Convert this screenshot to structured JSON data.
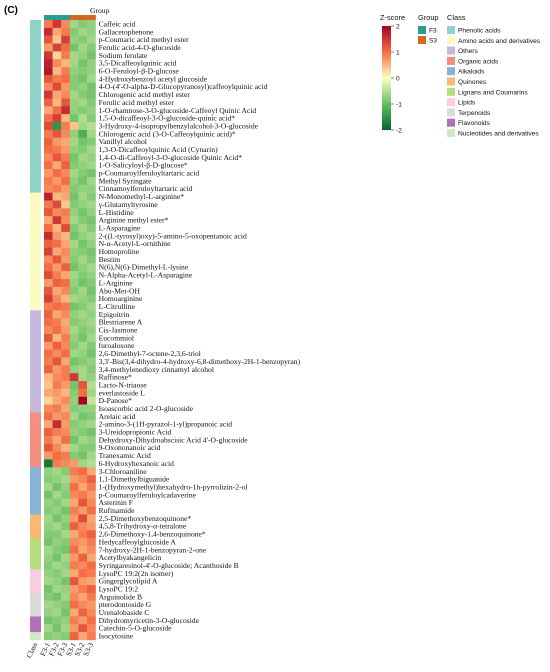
{
  "chart_data": {
    "type": "heatmap",
    "panel_label": "(C)",
    "group_header": "Group",
    "columns": [
      "Class",
      "F3-1",
      "F3-2",
      "F3-3",
      "S3-1",
      "S3-2",
      "S3-3"
    ],
    "column_groups": [
      "F3",
      "F3",
      "F3",
      "S3",
      "S3",
      "S3"
    ],
    "zscore_range": [
      -2,
      2
    ],
    "zscore_ticks": [
      2,
      1,
      0,
      -1,
      -2
    ],
    "legend": {
      "zscore_title": "Z-score",
      "group_title": "Group",
      "class_title": "Class",
      "groups": [
        {
          "name": "F3",
          "color": "#2a9d8f"
        },
        {
          "name": "S3",
          "color": "#d2691e"
        }
      ],
      "classes": [
        {
          "name": "Phenolic acids",
          "color": "#8fd3cb"
        },
        {
          "name": "Amino acids and derivatives",
          "color": "#fdfbc4"
        },
        {
          "name": "Others",
          "color": "#c5b8dc"
        },
        {
          "name": "Organic acids",
          "color": "#f58e7f"
        },
        {
          "name": "Alkaloids",
          "color": "#86b3d6"
        },
        {
          "name": "Quinones",
          "color": "#f9b774"
        },
        {
          "name": "Lignans and Coumarins",
          "color": "#b8dd7e"
        },
        {
          "name": "Lipids",
          "color": "#f7cde0"
        },
        {
          "name": "Terpenoids",
          "color": "#d9d9d9"
        },
        {
          "name": "Flavonoids",
          "color": "#b370b8"
        },
        {
          "name": "Nucleotides and derivatives",
          "color": "#cfeac3"
        }
      ]
    },
    "rows": [
      {
        "name": "Caffeic acid",
        "class": "Phenolic acids",
        "values": [
          0.9,
          1.5,
          0.8,
          -0.6,
          -0.8,
          -0.7
        ]
      },
      {
        "name": "Gallacetophenone",
        "class": "Phenolic acids",
        "values": [
          1.6,
          0.6,
          0.9,
          -0.8,
          -0.6,
          -0.7
        ]
      },
      {
        "name": "p-Coumaric acid methyl ester",
        "class": "Phenolic acids",
        "values": [
          1.2,
          0.4,
          1.4,
          -0.7,
          -0.8,
          -0.6
        ]
      },
      {
        "name": "Ferulic acid-4-O-glucoside",
        "class": "Phenolic acids",
        "values": [
          0.7,
          1.4,
          1.0,
          -0.9,
          -0.6,
          -0.8
        ]
      },
      {
        "name": "Sodium ferulate",
        "class": "Phenolic acids",
        "values": [
          1.5,
          0.3,
          0.9,
          -0.6,
          -0.7,
          -0.9
        ]
      },
      {
        "name": "3,5-Dicaffeoylquinic acid",
        "class": "Phenolic acids",
        "values": [
          1.7,
          0.8,
          0.5,
          -0.6,
          -0.9,
          -0.7
        ]
      },
      {
        "name": "6-O-Feruloyl-β-D-glucose",
        "class": "Phenolic acids",
        "values": [
          1.8,
          0.5,
          0.9,
          -0.7,
          -0.8,
          -0.7
        ]
      },
      {
        "name": "4-Hydroxybenzoyl acetyl glucoside",
        "class": "Phenolic acids",
        "values": [
          1.2,
          0.9,
          1.0,
          -0.8,
          -0.9,
          -0.6
        ]
      },
      {
        "name": "4-O-(4'-O-alpha-D-Glucopyranosyl)caffeoylquinic acid",
        "class": "Phenolic acids",
        "values": [
          0.8,
          1.3,
          0.7,
          -0.8,
          -0.7,
          -0.9
        ]
      },
      {
        "name": "Chlorogenic acid methyl ester",
        "class": "Phenolic acids",
        "values": [
          1.5,
          0.6,
          0.8,
          -0.6,
          -0.8,
          -0.9
        ]
      },
      {
        "name": "Ferulic acid methyl ester",
        "class": "Phenolic acids",
        "values": [
          1.1,
          0.5,
          1.2,
          -0.7,
          -0.6,
          -0.8
        ]
      },
      {
        "name": "1-O-rhamnose-3-O-glucoside-Caffeoyl Quinic Acid",
        "class": "Phenolic acids",
        "values": [
          0.6,
          1.0,
          1.6,
          -0.7,
          -0.8,
          -0.7
        ]
      },
      {
        "name": "1,5-O-dicaffeoyl-3-O-glucoside-quinic acid*",
        "class": "Phenolic acids",
        "values": [
          1.0,
          1.4,
          0.5,
          -0.9,
          -0.5,
          -0.8
        ]
      },
      {
        "name": "3-Hydroxy-4-isopropylbenzylalcohol-3-O-glucoside",
        "class": "Phenolic acids",
        "values": [
          1.3,
          -1.5,
          0.9,
          0.4,
          -0.6,
          -0.5
        ]
      },
      {
        "name": "Chlorogenic acid (3-O-Caffeoylquinic acid)*",
        "class": "Phenolic acids",
        "values": [
          0.9,
          1.2,
          0.8,
          -0.7,
          -1.2,
          -0.6
        ]
      },
      {
        "name": "Vanillyl alcohol",
        "class": "Phenolic acids",
        "values": [
          1.1,
          0.7,
          0.6,
          -0.6,
          -0.9,
          -0.8
        ]
      },
      {
        "name": "1,3-O-Dicaffeoylquinic Acid (Cynarin)",
        "class": "Phenolic acids",
        "values": [
          1.0,
          0.9,
          0.7,
          -0.7,
          -0.8,
          -0.6
        ]
      },
      {
        "name": "1,4-O-di-Caffeoyl-3-O-glucoside Quinic Acid*",
        "class": "Phenolic acids",
        "values": [
          0.8,
          1.2,
          0.9,
          -0.9,
          -0.6,
          -0.7
        ]
      },
      {
        "name": "1-O-Salicyloyl-β-D-glucose*",
        "class": "Phenolic acids",
        "values": [
          1.0,
          0.6,
          1.1,
          -0.8,
          -0.7,
          -0.6
        ]
      },
      {
        "name": "p-Coumaroylferuloyltartaric acid",
        "class": "Phenolic acids",
        "values": [
          0.7,
          1.0,
          0.8,
          -0.6,
          -0.8,
          -0.9
        ]
      },
      {
        "name": "Methyl Syringate",
        "class": "Phenolic acids",
        "values": [
          0.9,
          0.7,
          1.0,
          -0.7,
          -0.9,
          -0.6
        ]
      },
      {
        "name": "Cinnamoylferuloyltartaric acid",
        "class": "Phenolic acids",
        "values": [
          0.8,
          0.9,
          0.7,
          -0.8,
          -0.7,
          -0.7
        ]
      },
      {
        "name": "N-Monomethyl-L-arginine*",
        "class": "Amino acids and derivatives",
        "values": [
          1.7,
          0.5,
          0.6,
          -0.9,
          -0.6,
          -0.8
        ]
      },
      {
        "name": "γ-Glutamyltyrosine",
        "class": "Amino acids and derivatives",
        "values": [
          0.9,
          1.3,
          0.4,
          -0.8,
          -0.7,
          -0.6
        ]
      },
      {
        "name": "L-Histidine",
        "class": "Amino acids and derivatives",
        "values": [
          1.2,
          0.8,
          0.9,
          -0.7,
          -0.9,
          -0.7
        ]
      },
      {
        "name": "Arginine methyl ester*",
        "class": "Amino acids and derivatives",
        "values": [
          0.6,
          1.5,
          0.8,
          -0.6,
          -0.8,
          -0.9
        ]
      },
      {
        "name": "L-Asparagine",
        "class": "Amino acids and derivatives",
        "values": [
          1.0,
          0.5,
          1.3,
          -0.8,
          -0.6,
          -0.8
        ]
      },
      {
        "name": "2-((L-tyrosyl)oxy)-5-amino-5-oxopentanoic acid",
        "class": "Amino acids and derivatives",
        "values": [
          1.6,
          0.7,
          0.5,
          -0.9,
          -0.7,
          -0.6
        ]
      },
      {
        "name": "N-α-Acetyl-L-ornithine",
        "class": "Amino acids and derivatives",
        "values": [
          1.1,
          1.0,
          0.6,
          -0.6,
          -0.9,
          -0.7
        ]
      },
      {
        "name": "Homoproline",
        "class": "Amino acids and derivatives",
        "values": [
          1.4,
          0.6,
          0.8,
          -0.7,
          -0.8,
          -0.9
        ]
      },
      {
        "name": "Bestim",
        "class": "Amino acids and derivatives",
        "values": [
          0.8,
          1.2,
          0.7,
          -0.8,
          -0.6,
          -0.8
        ]
      },
      {
        "name": "N(6),N(6)-Dimethyl-L-lysine",
        "class": "Amino acids and derivatives",
        "values": [
          1.0,
          0.7,
          1.1,
          -0.9,
          -0.7,
          -0.6
        ]
      },
      {
        "name": "N-Alpha-Acetyl-L-Asparagine",
        "class": "Amino acids and derivatives",
        "values": [
          1.3,
          0.9,
          0.6,
          -0.6,
          -0.8,
          -0.7
        ]
      },
      {
        "name": "L-Arginine",
        "class": "Amino acids and derivatives",
        "values": [
          0.7,
          1.1,
          1.0,
          -0.7,
          -0.9,
          -0.8
        ]
      },
      {
        "name": "Abu-Met-OH",
        "class": "Amino acids and derivatives",
        "values": [
          1.2,
          0.6,
          0.8,
          -0.8,
          -0.6,
          -0.9
        ]
      },
      {
        "name": "Homoarginine",
        "class": "Amino acids and derivatives",
        "values": [
          1.4,
          0.8,
          0.5,
          -0.6,
          -0.7,
          -0.8
        ]
      },
      {
        "name": "L-Citrulline",
        "class": "Amino acids and derivatives",
        "values": [
          0.9,
          1.0,
          0.9,
          -0.9,
          -0.8,
          -0.6
        ]
      },
      {
        "name": "Epigoitrin",
        "class": "Others",
        "values": [
          1.1,
          0.6,
          0.8,
          -0.7,
          -0.6,
          -0.7
        ]
      },
      {
        "name": "Blestriarene A",
        "class": "Others",
        "values": [
          1.0,
          0.9,
          0.6,
          -0.8,
          -0.7,
          -0.6
        ]
      },
      {
        "name": "Cis-Jasmone",
        "class": "Others",
        "values": [
          0.8,
          1.0,
          0.7,
          -0.6,
          -0.8,
          -0.7
        ]
      },
      {
        "name": "Eucommiol",
        "class": "Others",
        "values": [
          1.2,
          0.5,
          0.9,
          -0.7,
          -0.9,
          -0.6
        ]
      },
      {
        "name": "furoalosone",
        "class": "Others",
        "values": [
          0.7,
          1.1,
          0.8,
          -0.8,
          -0.6,
          -0.8
        ]
      },
      {
        "name": "2,6-Dimethyl-7-octene-2,3,6-triol",
        "class": "Others",
        "values": [
          1.0,
          0.8,
          1.0,
          -0.6,
          -0.7,
          -0.9
        ]
      },
      {
        "name": "3,3'-Bis(3,4-dihydro-4-hydroxy-6,8-dimethoxy-2H-1-benzopyran)",
        "class": "Others",
        "values": [
          0.9,
          1.2,
          0.6,
          -0.9,
          -0.8,
          -0.7
        ]
      },
      {
        "name": "3,4-methylenedioxy cinnamyl alcohol",
        "class": "Others",
        "values": [
          1.1,
          0.7,
          0.9,
          -0.7,
          -0.6,
          -0.8
        ]
      },
      {
        "name": "Raffinose*",
        "class": "Others",
        "values": [
          0.5,
          0.8,
          0.9,
          1.5,
          -0.6,
          -0.7
        ]
      },
      {
        "name": "Lacto-N-triaose",
        "class": "Others",
        "values": [
          0.4,
          0.9,
          0.7,
          -0.9,
          1.2,
          -0.5
        ]
      },
      {
        "name": "everlastoside L",
        "class": "Others",
        "values": [
          0.6,
          0.7,
          0.5,
          -0.8,
          1.0,
          -0.6
        ]
      },
      {
        "name": "D-Panose*",
        "class": "Others",
        "values": [
          0.3,
          0.6,
          0.8,
          -0.7,
          2.0,
          -0.4
        ]
      },
      {
        "name": "Isoascorbic acid 2-O-glucoside",
        "class": "Others",
        "values": [
          0.8,
          0.9,
          0.6,
          -0.8,
          -0.7,
          -0.7
        ]
      },
      {
        "name": "Arelaic acid",
        "class": "Organic acids",
        "values": [
          1.0,
          0.7,
          0.8,
          -0.6,
          -0.9,
          -0.8
        ]
      },
      {
        "name": "2-amino-3-(1H-pyrazol-1-yl)propanoic acid",
        "class": "Organic acids",
        "values": [
          0.6,
          1.6,
          0.7,
          -0.8,
          -0.7,
          -0.6
        ]
      },
      {
        "name": "3-Ureidopropionic Acid",
        "class": "Organic acids",
        "values": [
          1.1,
          0.9,
          0.8,
          -0.7,
          -0.8,
          -0.9
        ]
      },
      {
        "name": "Dehydroxy-Dihydroabscisic Acid 4'-O-glucoside",
        "class": "Organic acids",
        "values": [
          0.9,
          0.6,
          1.0,
          -0.9,
          -0.6,
          -0.7
        ]
      },
      {
        "name": "9-Oxononanoic acid",
        "class": "Organic acids",
        "values": [
          1.2,
          0.8,
          0.5,
          -0.6,
          -0.8,
          -0.8
        ]
      },
      {
        "name": "Tranexamic Acid",
        "class": "Organic acids",
        "values": [
          0.7,
          1.0,
          0.9,
          -0.8,
          -0.9,
          -0.6
        ]
      },
      {
        "name": "6-Hydroxyhexanoic acid",
        "class": "Organic acids",
        "values": [
          -1.8,
          0.9,
          0.8,
          0.7,
          -0.6,
          -0.5
        ]
      },
      {
        "name": "3-Chloroaniline",
        "class": "Alkaloids",
        "values": [
          -0.7,
          -0.6,
          -0.8,
          0.9,
          1.0,
          0.6
        ]
      },
      {
        "name": "1,1-Dimethylbiguanide",
        "class": "Alkaloids",
        "values": [
          -0.8,
          -0.7,
          -0.6,
          0.7,
          0.8,
          1.1
        ]
      },
      {
        "name": "1-(Hydroxymethyl)hexahydro-1h-pyrrolizin-2-ol",
        "class": "Alkaloids",
        "values": [
          -0.6,
          -0.9,
          -0.7,
          1.0,
          0.6,
          0.9
        ]
      },
      {
        "name": "p-Coumaroylferuloylcadaverine",
        "class": "Alkaloids",
        "values": [
          -0.9,
          -0.6,
          -0.8,
          0.8,
          0.9,
          0.7
        ]
      },
      {
        "name": "Asterinin F",
        "class": "Alkaloids",
        "values": [
          -0.7,
          -0.8,
          -0.6,
          0.6,
          1.2,
          0.8
        ]
      },
      {
        "name": "Rufinamide",
        "class": "Alkaloids",
        "values": [
          -0.8,
          -0.7,
          -0.9,
          0.9,
          0.7,
          1.0
        ]
      },
      {
        "name": "2,5-Dimethoxybenzoquinone*",
        "class": "Quinones",
        "values": [
          -0.6,
          -0.9,
          -0.7,
          0.7,
          1.3,
          0.6
        ]
      },
      {
        "name": "4,5,8-Trihydroxy-α-tetralone",
        "class": "Quinones",
        "values": [
          -0.7,
          -0.6,
          -0.8,
          1.1,
          0.8,
          0.7
        ]
      },
      {
        "name": "2,6-Dimethoxy-1,4-benzoquinone*",
        "class": "Quinones",
        "values": [
          -0.8,
          -0.8,
          -0.6,
          0.6,
          0.9,
          1.1
        ]
      },
      {
        "name": "Hedycaffeoylglucoside A",
        "class": "Lignans and Coumarins",
        "values": [
          -0.9,
          -0.7,
          -0.8,
          0.8,
          0.7,
          0.9
        ]
      },
      {
        "name": "7-hydroxy-2H-1-benzopyran-2-one",
        "class": "Lignans and Coumarins",
        "values": [
          -0.6,
          -0.8,
          -0.9,
          1.0,
          0.6,
          0.8
        ]
      },
      {
        "name": "Acetylbyakangelicin",
        "class": "Lignans and Coumarins",
        "values": [
          -0.7,
          -0.9,
          -0.6,
          0.7,
          1.1,
          0.6
        ]
      },
      {
        "name": "Syringaresinol-4'-O-glucoside; Acanthoside B",
        "class": "Lignans and Coumarins",
        "values": [
          -0.8,
          -0.6,
          -0.7,
          0.9,
          0.8,
          1.0
        ]
      },
      {
        "name": "LysoPC 19:2(2n isomer)",
        "class": "Lipids",
        "values": [
          -0.7,
          -0.8,
          -0.6,
          0.6,
          1.0,
          0.9
        ]
      },
      {
        "name": "Gingerglycolipid A",
        "class": "Lipids",
        "values": [
          -0.6,
          -0.7,
          -0.9,
          1.2,
          0.7,
          0.6
        ]
      },
      {
        "name": "LysoPC 19:2",
        "class": "Lipids",
        "values": [
          -0.9,
          -0.6,
          -0.7,
          0.7,
          0.9,
          1.1
        ]
      },
      {
        "name": "Arguinolide B",
        "class": "Terpenoids",
        "values": [
          -0.8,
          -0.9,
          -0.6,
          0.8,
          0.6,
          0.9
        ]
      },
      {
        "name": "pterodontoside G",
        "class": "Terpenoids",
        "values": [
          -0.6,
          -0.7,
          -0.8,
          1.0,
          0.8,
          0.7
        ]
      },
      {
        "name": "Urenalobaside C",
        "class": "Terpenoids",
        "values": [
          -0.7,
          -0.6,
          -0.9,
          0.6,
          1.1,
          0.8
        ]
      },
      {
        "name": "Dihydromyricetin-3-O-glucoside",
        "class": "Flavonoids",
        "values": [
          -0.9,
          -0.8,
          -0.7,
          0.9,
          0.7,
          1.0
        ]
      },
      {
        "name": "Catechin-5-O-glucoside",
        "class": "Flavonoids",
        "values": [
          -0.6,
          -0.9,
          -0.6,
          0.7,
          1.2,
          0.8
        ]
      },
      {
        "name": "Isocytosine",
        "class": "Nucleotides and derivatives",
        "values": [
          -0.8,
          -0.7,
          -0.8,
          1.1,
          0.6,
          0.9
        ]
      }
    ]
  }
}
